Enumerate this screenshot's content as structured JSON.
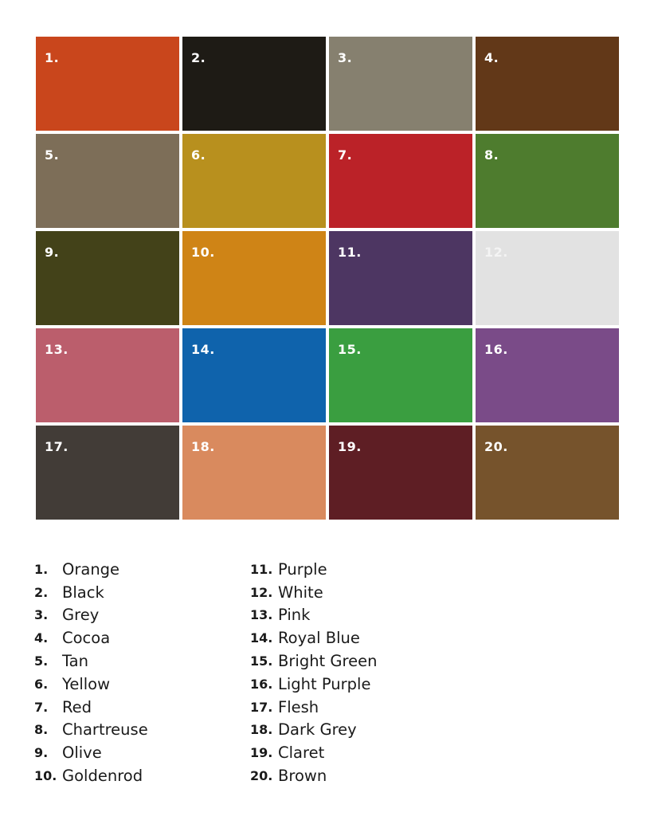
{
  "swatches": [
    {
      "number": "1.",
      "color": "#c9461c"
    },
    {
      "number": "2.",
      "color": "#1e1b15"
    },
    {
      "number": "3.",
      "color": "#86806f"
    },
    {
      "number": "4.",
      "color": "#623818"
    },
    {
      "number": "5.",
      "color": "#7d6e58"
    },
    {
      "number": "6.",
      "color": "#b8901e"
    },
    {
      "number": "7.",
      "color": "#bb2228"
    },
    {
      "number": "8.",
      "color": "#4e7c2e"
    },
    {
      "number": "9.",
      "color": "#434219"
    },
    {
      "number": "10.",
      "color": "#cf8416"
    },
    {
      "number": "11.",
      "color": "#4d3662"
    },
    {
      "number": "12.",
      "color": "#e2e2e2"
    },
    {
      "number": "13.",
      "color": "#bb5e6c"
    },
    {
      "number": "14.",
      "color": "#0f63ac"
    },
    {
      "number": "15.",
      "color": "#3a9e40"
    },
    {
      "number": "16.",
      "color": "#7a4b88"
    },
    {
      "number": "17.",
      "color": "#423c37"
    },
    {
      "number": "18.",
      "color": "#d98a5e"
    },
    {
      "number": "19.",
      "color": "#5e1e24"
    },
    {
      "number": "20.",
      "color": "#76532c"
    }
  ],
  "legend": [
    {
      "number": "1.",
      "name": "Orange"
    },
    {
      "number": "2.",
      "name": "Black"
    },
    {
      "number": "3.",
      "name": "Grey"
    },
    {
      "number": "4.",
      "name": "Cocoa"
    },
    {
      "number": "5.",
      "name": "Tan"
    },
    {
      "number": "6.",
      "name": "Yellow"
    },
    {
      "number": "7.",
      "name": "Red"
    },
    {
      "number": "8.",
      "name": "Chartreuse"
    },
    {
      "number": "9.",
      "name": "Olive"
    },
    {
      "number": "10.",
      "name": "Goldenrod"
    },
    {
      "number": "11.",
      "name": "Purple"
    },
    {
      "number": "12.",
      "name": "White"
    },
    {
      "number": "13.",
      "name": "Pink"
    },
    {
      "number": "14.",
      "name": "Royal Blue"
    },
    {
      "number": "15.",
      "name": "Bright Green"
    },
    {
      "number": "16.",
      "name": "Light Purple"
    },
    {
      "number": "17.",
      "name": "Flesh"
    },
    {
      "number": "18.",
      "name": "Dark Grey"
    },
    {
      "number": "19.",
      "name": "Claret"
    },
    {
      "number": "20.",
      "name": "Brown"
    }
  ]
}
